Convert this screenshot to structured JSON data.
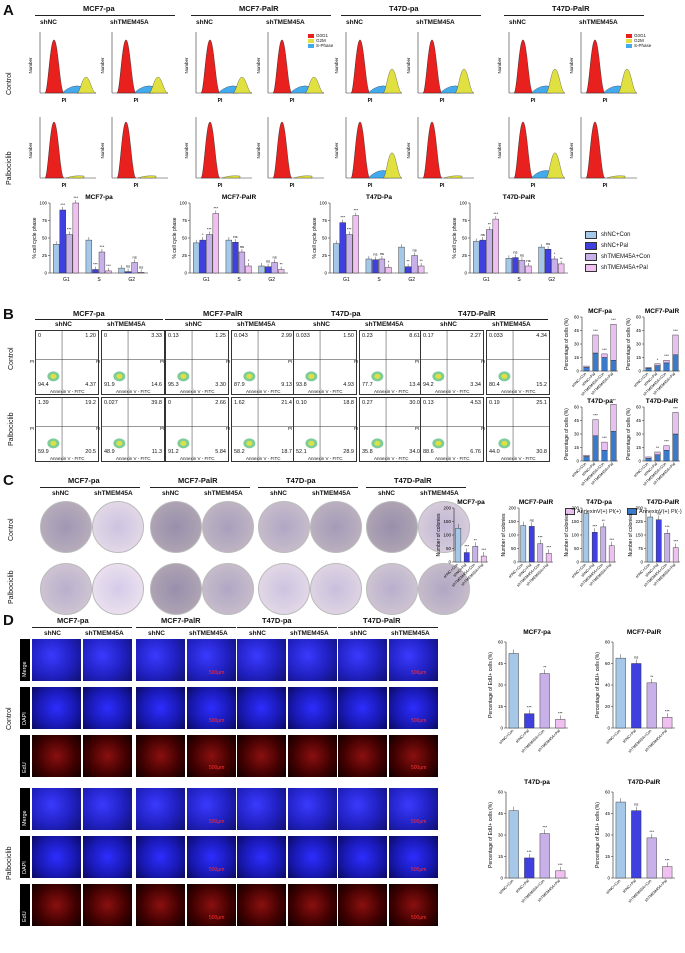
{
  "panels": {
    "A": "A",
    "B": "B",
    "C": "C",
    "D": "D"
  },
  "cell_lines": [
    "MCF7-pa",
    "MCF7-PalR",
    "T47D-pa",
    "T47D-PalR"
  ],
  "conditions": [
    "shNC",
    "shTMEM45A"
  ],
  "rows": {
    "control": "Control",
    "palbociclib": "Palbociclib"
  },
  "stains": [
    "Merge",
    "DAPI",
    "EdU"
  ],
  "scale_bar": "500μm",
  "flow_axis": {
    "x": "Annexin V - FITC",
    "y": "PI"
  },
  "hist_axis": {
    "x": "PI",
    "y": "Number"
  },
  "phase_legend": [
    "G0G1",
    "G2M",
    "S-Phase"
  ],
  "colors": {
    "g0g1": "#e8201e",
    "g2m": "#e0e040",
    "sphase": "#44aaee",
    "shNC_Con": "#a6c8e8",
    "shNC_Pal": "#4040e0",
    "shT_Con": "#c8b0e8",
    "shT_Pal": "#f0c0f0"
  },
  "flow_quadrants": [
    {
      "ul": "0",
      "ur": "1.20",
      "ll": "94.4",
      "lr": "4.37"
    },
    {
      "ul": "0",
      "ur": "3.33",
      "ll": "91.9",
      "lr": "14.6"
    },
    {
      "ul": "0.13",
      "ur": "1.25",
      "ll": "95.3",
      "lr": "3.30"
    },
    {
      "ul": "0.043",
      "ur": "2.99",
      "ll": "87.9",
      "lr": "9.13"
    },
    {
      "ul": "0.033",
      "ur": "1.50",
      "ll": "93.8",
      "lr": "4.93"
    },
    {
      "ul": "0.23",
      "ur": "8.61",
      "ll": "77.7",
      "lr": "13.4"
    },
    {
      "ul": "0.17",
      "ur": "2.27",
      "ll": "94.2",
      "lr": "3.34"
    },
    {
      "ul": "0.033",
      "ur": "4.34",
      "ll": "80.4",
      "lr": "15.2"
    },
    {
      "ul": "1.39",
      "ur": "19.2",
      "ll": "59.9",
      "lr": "20.5"
    },
    {
      "ul": "0.027",
      "ur": "39.8",
      "ll": "48.9",
      "lr": "11.3"
    },
    {
      "ul": "0",
      "ur": "2.66",
      "ll": "91.2",
      "lr": "5.84"
    },
    {
      "ul": "1.62",
      "ur": "21.4",
      "ll": "58.2",
      "lr": "18.7"
    },
    {
      "ul": "0.10",
      "ur": "18.8",
      "ll": "52.1",
      "lr": "28.9"
    },
    {
      "ul": "0.27",
      "ur": "30.0",
      "ll": "35.8",
      "lr": "34.0"
    },
    {
      "ul": "0.13",
      "ur": "4.53",
      "ll": "88.6",
      "lr": "6.76"
    },
    {
      "ul": "0.19",
      "ur": "25.1",
      "ll": "44.0",
      "lr": "30.8"
    }
  ],
  "legend_A": [
    "shNC+Con",
    "shNC+Pal",
    "shTMEM45A+Con",
    "shTMEM45A+Pal"
  ],
  "legend_B": [
    "AnnexinV(+) PI(+)",
    "AnnexinV(+) PI(-)"
  ],
  "chart_data": [
    {
      "type": "bar",
      "title": "MCF7-pa",
      "ylabel": "% cell cycle phase",
      "categories": [
        "G1",
        "S",
        "G2"
      ],
      "ylim": [
        0,
        100
      ],
      "series": [
        {
          "name": "shNC+Con",
          "values": [
            41,
            47,
            7
          ]
        },
        {
          "name": "shNC+Pal",
          "values": [
            90,
            5,
            2
          ]
        },
        {
          "name": "shTMEM45A+Con",
          "values": [
            55,
            30,
            15
          ]
        },
        {
          "name": "shTMEM45A+Pal",
          "values": [
            100,
            3,
            1
          ]
        }
      ],
      "sig": [
        [
          "",
          "***",
          "***",
          "***"
        ],
        [
          "",
          "***",
          "***",
          "***"
        ],
        [
          "",
          "ns",
          "ns",
          "ns"
        ]
      ]
    },
    {
      "type": "bar",
      "title": "MCF7-PalR",
      "ylabel": "% cell cycle phase",
      "categories": [
        "G1",
        "S",
        "G2"
      ],
      "ylim": [
        0,
        100
      ],
      "series": [
        {
          "name": "shNC+Con",
          "values": [
            43,
            47,
            10
          ]
        },
        {
          "name": "shNC+Pal",
          "values": [
            47,
            44,
            9
          ]
        },
        {
          "name": "shTMEM45A+Con",
          "values": [
            55,
            30,
            15
          ]
        },
        {
          "name": "shTMEM45A+Pal",
          "values": [
            85,
            10,
            5
          ]
        }
      ],
      "sig": [
        [
          "",
          "*",
          "***",
          "***"
        ],
        [
          "",
          "ns",
          "ns",
          "*"
        ],
        [
          "",
          "ns",
          "ns",
          "**"
        ]
      ]
    },
    {
      "type": "bar",
      "title": "T47D-Pa",
      "ylabel": "% cell cycle phase",
      "categories": [
        "G1",
        "S",
        "G2"
      ],
      "ylim": [
        0,
        100
      ],
      "series": [
        {
          "name": "shNC+Con",
          "values": [
            42,
            20,
            37
          ]
        },
        {
          "name": "shNC+Pal",
          "values": [
            72,
            19,
            9
          ]
        },
        {
          "name": "shTMEM45A+Con",
          "values": [
            55,
            20,
            25
          ]
        },
        {
          "name": "shTMEM45A+Pal",
          "values": [
            82,
            8,
            10
          ]
        }
      ],
      "sig": [
        [
          "",
          "***",
          "***",
          "***"
        ],
        [
          "",
          "ns",
          "ns",
          "*"
        ],
        [
          "",
          "**",
          "ns",
          "**"
        ]
      ]
    },
    {
      "type": "bar",
      "title": "T47D-PalR",
      "ylabel": "% cell cycle phase",
      "categories": [
        "G1",
        "S",
        "G2"
      ],
      "ylim": [
        0,
        100
      ],
      "series": [
        {
          "name": "shNC+Con",
          "values": [
            45,
            21,
            37
          ]
        },
        {
          "name": "shNC+Pal",
          "values": [
            47,
            22,
            34
          ]
        },
        {
          "name": "shTMEM45A+Con",
          "values": [
            62,
            18,
            20
          ]
        },
        {
          "name": "shTMEM45A+Pal",
          "values": [
            77,
            10,
            13
          ]
        }
      ],
      "sig": [
        [
          "",
          "ns",
          "**",
          "***"
        ],
        [
          "",
          "ns",
          "ns",
          "ns"
        ],
        [
          "",
          "ns",
          "*",
          "**"
        ]
      ]
    },
    {
      "type": "bar",
      "title": "MCF-pa",
      "ylabel": "Percentage of cells (%)",
      "categories": [
        "shNC+Con",
        "shNC+Pal",
        "shTMEM45A+Con",
        "shTMEM45A+Pal"
      ],
      "ylim": [
        0,
        60
      ],
      "series": [
        {
          "name": "AnnexinV(+) PI(+)",
          "values": [
            1.5,
            20,
            4,
            40
          ]
        },
        {
          "name": "AnnexinV(+) PI(-)",
          "values": [
            4,
            20,
            15,
            12
          ]
        }
      ],
      "sig": [
        "",
        "***",
        "***",
        "***"
      ]
    },
    {
      "type": "bar",
      "title": "MCF7-PalR",
      "ylabel": "Percentage of cells (%)",
      "categories": [
        "shNC+Con",
        "shNC+Pal",
        "shTMEM45A+Con",
        "shTMEM45A+Pal"
      ],
      "ylim": [
        0,
        60
      ],
      "series": [
        {
          "name": "AnnexinV(+) PI(+)",
          "values": [
            1,
            2,
            3,
            22
          ]
        },
        {
          "name": "AnnexinV(+) PI(-)",
          "values": [
            3,
            6,
            9,
            18
          ]
        }
      ],
      "sig": [
        "",
        "*",
        "***",
        "***"
      ]
    },
    {
      "type": "bar",
      "title": "T47D-pa",
      "ylabel": "Percentage of cells (%)",
      "categories": [
        "shNC+Con",
        "shNC+Pal",
        "shTMEM45A+Con",
        "shTMEM45A+Pal"
      ],
      "ylim": [
        0,
        60
      ],
      "series": [
        {
          "name": "AnnexinV(+) PI(+)",
          "values": [
            1.5,
            18,
            9,
            30
          ]
        },
        {
          "name": "AnnexinV(+) PI(-)",
          "values": [
            5,
            28,
            12,
            33
          ]
        }
      ],
      "sig": [
        "",
        "***",
        "***",
        "***"
      ]
    },
    {
      "type": "bar",
      "title": "T47D-PalR",
      "ylabel": "Percentage of cells (%)",
      "categories": [
        "shNC+Con",
        "shNC+Pal",
        "shTMEM45A+Con",
        "shTMEM45A+Pal"
      ],
      "ylim": [
        0,
        60
      ],
      "series": [
        {
          "name": "AnnexinV(+) PI(+)",
          "values": [
            1.5,
            3,
            5,
            24
          ]
        },
        {
          "name": "AnnexinV(+) PI(-)",
          "values": [
            3,
            7,
            12,
            30
          ]
        }
      ],
      "sig": [
        "",
        "**",
        "***",
        "***"
      ]
    },
    {
      "type": "bar",
      "title": "MCF7-pa",
      "ylabel": "Number of colonies",
      "categories": [
        "shNC+Con",
        "shNC+Pal",
        "shTMEM45A+Con",
        "shTMEM45A+Pal"
      ],
      "ylim": [
        0,
        200
      ],
      "series": [
        {
          "name": "colonies",
          "values": [
            125,
            35,
            58,
            22
          ]
        }
      ],
      "sig": [
        "",
        "***",
        "**",
        "***"
      ]
    },
    {
      "type": "bar",
      "title": "MCF7-PalR",
      "ylabel": "Number of colonies",
      "categories": [
        "shNC+Con",
        "shNC+Pal",
        "shTMEM45A+Con",
        "shTMEM45A+Pal"
      ],
      "ylim": [
        0,
        200
      ],
      "series": [
        {
          "name": "colonies",
          "values": [
            135,
            132,
            68,
            32
          ]
        }
      ],
      "sig": [
        "",
        "ns",
        "***",
        "***"
      ]
    },
    {
      "type": "bar",
      "title": "T47D-pa",
      "ylabel": "Number of colonies",
      "categories": [
        "shNC+Con",
        "shNC+Pal",
        "shTMEM45A+Con",
        "shTMEM45A+Pal"
      ],
      "ylim": [
        0,
        200
      ],
      "series": [
        {
          "name": "colonies",
          "values": [
            180,
            110,
            130,
            60
          ]
        }
      ],
      "sig": [
        "",
        "***",
        "**",
        "***"
      ]
    },
    {
      "type": "bar",
      "title": "T47D-PalR",
      "ylabel": "Number of colonies",
      "categories": [
        "shNC+Con",
        "shNC+Pal",
        "shTMEM45A+Con",
        "shTMEM45A+Pal"
      ],
      "ylim": [
        0,
        300
      ],
      "series": [
        {
          "name": "colonies",
          "values": [
            250,
            235,
            160,
            80
          ]
        }
      ],
      "sig": [
        "",
        "ns",
        "***",
        "***"
      ]
    },
    {
      "type": "bar",
      "title": "MCF7-pa",
      "ylabel": "Percentage of EdU+ cells (%)",
      "categories": [
        "shNC+Con",
        "shNC+Pal",
        "shTMEM45A+Con",
        "shTMEM45A+Pal"
      ],
      "ylim": [
        0,
        60
      ],
      "series": [
        {
          "name": "EdU+",
          "values": [
            52,
            10,
            38,
            6
          ]
        }
      ],
      "sig": [
        "",
        "***",
        "**",
        "***"
      ]
    },
    {
      "type": "bar",
      "title": "MCF7-PalR",
      "ylabel": "Percentage of EdU+ cells (%)",
      "categories": [
        "shNC+Con",
        "shNC+Pal",
        "shTMEM45A+Con",
        "shTMEM45A+Pal"
      ],
      "ylim": [
        0,
        80
      ],
      "series": [
        {
          "name": "EdU+",
          "values": [
            65,
            60,
            42,
            10
          ]
        }
      ],
      "sig": [
        "",
        "ns",
        "**",
        "***"
      ]
    },
    {
      "type": "bar",
      "title": "T47D-pa",
      "ylabel": "Percentage of EdU+ cells (%)",
      "categories": [
        "shNC+Con",
        "shNC+Pal",
        "shTMEM45A+Con",
        "shTMEM45A+Pal"
      ],
      "ylim": [
        0,
        60
      ],
      "series": [
        {
          "name": "EdU+",
          "values": [
            47,
            14,
            31,
            5
          ]
        }
      ],
      "sig": [
        "",
        "***",
        "***",
        "***"
      ]
    },
    {
      "type": "bar",
      "title": "T47D-PalR",
      "ylabel": "Percentage of EdU+ cells (%)",
      "categories": [
        "shNC+Con",
        "shNC+Pal",
        "shTMEM45A+Con",
        "shTMEM45A+Pal"
      ],
      "ylim": [
        0,
        60
      ],
      "series": [
        {
          "name": "EdU+",
          "values": [
            53,
            47,
            28,
            8
          ]
        }
      ],
      "sig": [
        "",
        "ns",
        "***",
        "***"
      ]
    }
  ]
}
